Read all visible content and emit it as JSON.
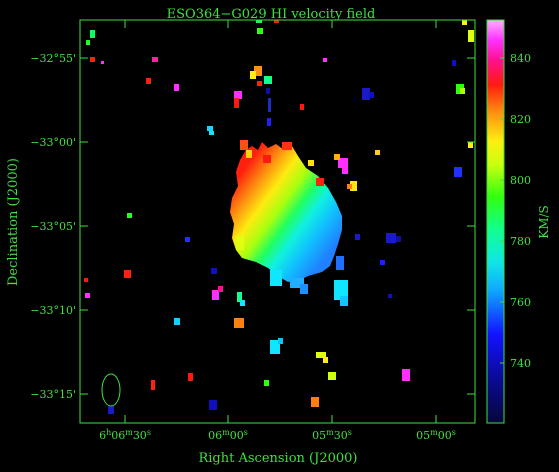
{
  "title": "ESO364−G029   HI velocity field",
  "axes": {
    "xlabel": "Right Ascension (J2000)",
    "ylabel": "Declination (J2000)",
    "dec_ticks": [
      "−32°55'",
      "−33°00'",
      "−33°05'",
      "−33°10'",
      "−33°15'"
    ],
    "ra_ticks": [
      {
        "h": "6",
        "hs": "h",
        "m": "06",
        "ms": "m",
        "s": "30",
        "ss": "s"
      },
      {
        "h": "",
        "hs": "",
        "m": "06",
        "ms": "m",
        "s": "00",
        "ss": "s"
      },
      {
        "h": "",
        "hs": "",
        "m": "05",
        "ms": "m",
        "s": "30",
        "ss": "s"
      },
      {
        "h": "",
        "hs": "",
        "m": "05",
        "ms": "m",
        "s": "00",
        "ss": "s"
      }
    ]
  },
  "colorbar": {
    "unit": "KM/S",
    "ticks": [
      "840",
      "820",
      "800",
      "780",
      "760",
      "740"
    ],
    "range": [
      722,
      852
    ]
  },
  "colors": {
    "frame": "#3fe03f",
    "background": "#000000"
  }
}
